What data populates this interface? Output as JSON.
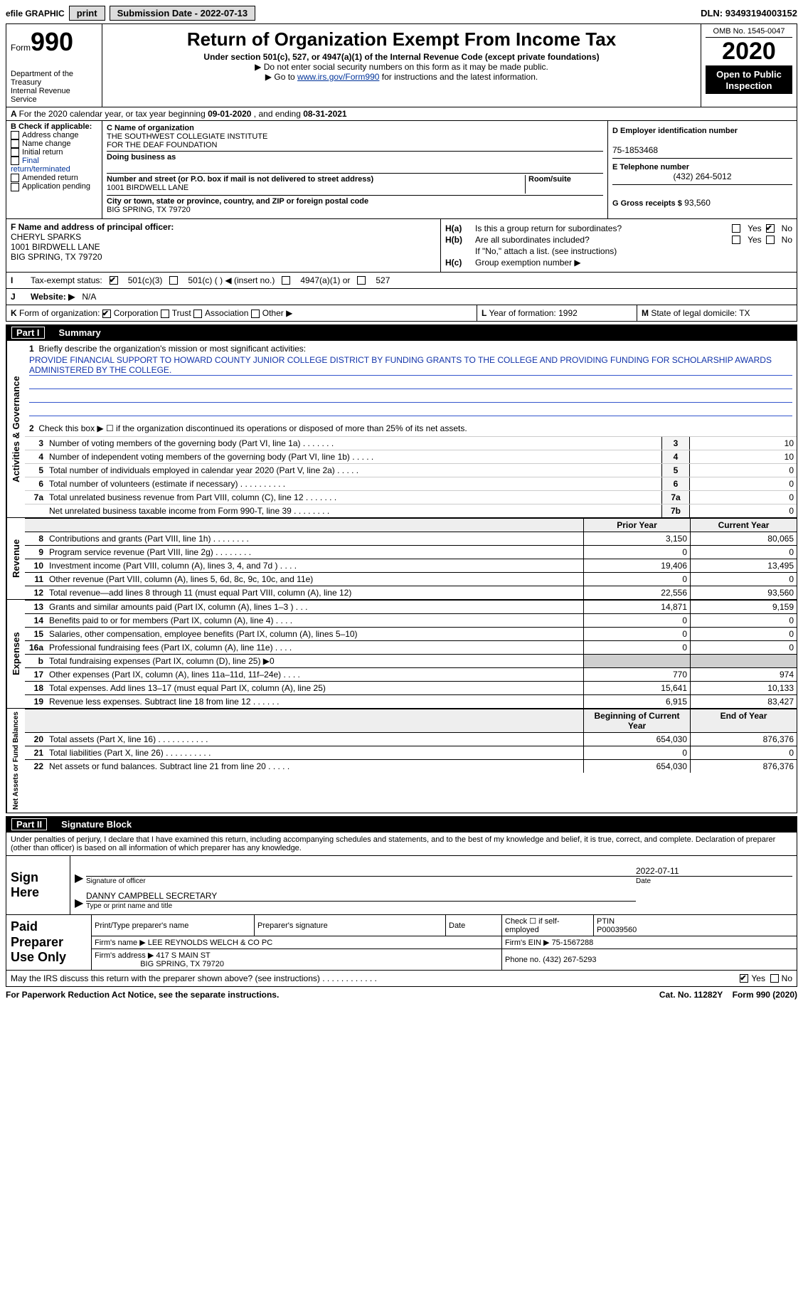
{
  "topbar": {
    "efile": "efile GRAPHIC",
    "print": "print",
    "submission_label": "Submission Date -",
    "submission_date": "2022-07-13",
    "dln_label": "DLN:",
    "dln": "93493194003152"
  },
  "header": {
    "form_label": "Form",
    "form_number": "990",
    "dept1": "Department of the Treasury",
    "dept2": "Internal Revenue Service",
    "title": "Return of Organization Exempt From Income Tax",
    "subtitle": "Under section 501(c), 527, or 4947(a)(1) of the Internal Revenue Code (except private foundations)",
    "note1_prefix": "▶ Do not enter social security numbers on this form as it may be made public.",
    "note2_prefix": "▶ Go to ",
    "note2_link": "www.irs.gov/Form990",
    "note2_suffix": " for instructions and the latest information.",
    "omb": "OMB No. 1545-0047",
    "year": "2020",
    "open_public": "Open to Public Inspection"
  },
  "rowA": {
    "prefix": "A",
    "text": "For the 2020 calendar year, or tax year beginning ",
    "begin": "09-01-2020",
    "mid": " , and ending ",
    "end": "08-31-2021"
  },
  "boxB": {
    "hdr": "B Check if applicable:",
    "items": [
      "Address change",
      "Name change",
      "Initial return",
      "Final return/terminated",
      "Amended return",
      "Application pending"
    ]
  },
  "boxC": {
    "c_lbl": "C Name of organization",
    "org1": "THE SOUTHWEST COLLEGIATE INSTITUTE",
    "org2": "FOR THE DEAF FOUNDATION",
    "dba_lbl": "Doing business as",
    "dba": "",
    "addr_lbl": "Number and street (or P.O. box if mail is not delivered to street address)",
    "room_lbl": "Room/suite",
    "street": "1001 BIRDWELL LANE",
    "city_lbl": "City or town, state or province, country, and ZIP or foreign postal code",
    "citystate": "BIG SPRING, TX  79720"
  },
  "boxD": {
    "d_lbl": "D Employer identification number",
    "ein": "75-1853468",
    "e_lbl": "E Telephone number",
    "phone": "(432) 264-5012",
    "g_lbl": "G Gross receipts $",
    "gross": "93,560"
  },
  "boxF": {
    "f_lbl": "F Name and address of principal officer:",
    "name": "CHERYL SPARKS",
    "addr1": "1001 BIRDWELL LANE",
    "addr2": "BIG SPRING, TX  79720"
  },
  "boxH": {
    "ha_lbl": "H(a)",
    "ha_text": "Is this a group return for subordinates?",
    "ha_yes": "Yes",
    "ha_no": "No",
    "hb_lbl": "H(b)",
    "hb_text": "Are all subordinates included?",
    "hb_yes": "Yes",
    "hb_no": "No",
    "hb_note": "If \"No,\" attach a list. (see instructions)",
    "hc_lbl": "H(c)",
    "hc_text": "Group exemption number ▶"
  },
  "rowI": {
    "lbl": "I",
    "text": "Tax-exempt status:",
    "opt1": "501(c)(3)",
    "opt2": "501(c) (   ) ◀ (insert no.)",
    "opt3": "4947(a)(1) or",
    "opt4": "527"
  },
  "rowJ": {
    "lbl": "J",
    "text": "Website: ▶",
    "val": "N/A"
  },
  "rowK": {
    "lbl": "K",
    "text": "Form of organization:",
    "opt1": "Corporation",
    "opt2": "Trust",
    "opt3": "Association",
    "opt4": "Other ▶"
  },
  "rowL": {
    "lbl": "L",
    "text": "Year of formation:",
    "val": "1992"
  },
  "rowM": {
    "lbl": "M",
    "text": "State of legal domicile:",
    "val": "TX"
  },
  "part1": {
    "label": "Part I",
    "title": "Summary",
    "q1_num": "1",
    "q1_text": "Briefly describe the organization's mission or most significant activities:",
    "q1_val": "PROVIDE FINANCIAL SUPPORT TO HOWARD COUNTY JUNIOR COLLEGE DISTRICT BY FUNDING GRANTS TO THE COLLEGE AND PROVIDING FUNDING FOR SCHOLARSHIP AWARDS ADMINISTERED BY THE COLLEGE.",
    "q2_num": "2",
    "q2_text": "Check this box ▶ ☐ if the organization discontinued its operations or disposed of more than 25% of its net assets.",
    "governance_label": "Activities & Governance",
    "lines_gov": [
      {
        "n": "3",
        "t": "Number of voting members of the governing body (Part VI, line 1a)   .    .    .    .    .    .    .",
        "b": "3",
        "v": "10"
      },
      {
        "n": "4",
        "t": "Number of independent voting members of the governing body (Part VI, line 1b)   .    .    .    .    .",
        "b": "4",
        "v": "10"
      },
      {
        "n": "5",
        "t": "Total number of individuals employed in calendar year 2020 (Part V, line 2a)   .    .    .    .    .",
        "b": "5",
        "v": "0"
      },
      {
        "n": "6",
        "t": "Total number of volunteers (estimate if necessary)   .    .    .    .    .    .    .    .    .    .",
        "b": "6",
        "v": "0"
      },
      {
        "n": "7a",
        "t": "Total unrelated business revenue from Part VIII, column (C), line 12   .    .    .    .    .    .    .",
        "b": "7a",
        "v": "0"
      },
      {
        "n": "",
        "t": "Net unrelated business taxable income from Form 990-T, line 39   .    .    .    .    .    .    .    .",
        "b": "7b",
        "v": "0"
      }
    ],
    "prior_year_hdr": "Prior Year",
    "current_year_hdr": "Current Year",
    "revenue_label": "Revenue",
    "lines_rev": [
      {
        "n": "8",
        "t": "Contributions and grants (Part VIII, line 1h)   .    .    .    .    .    .    .    .",
        "p": "3,150",
        "c": "80,065"
      },
      {
        "n": "9",
        "t": "Program service revenue (Part VIII, line 2g)   .    .    .    .    .    .    .    .",
        "p": "0",
        "c": "0"
      },
      {
        "n": "10",
        "t": "Investment income (Part VIII, column (A), lines 3, 4, and 7d )   .    .    .    .",
        "p": "19,406",
        "c": "13,495"
      },
      {
        "n": "11",
        "t": "Other revenue (Part VIII, column (A), lines 5, 6d, 8c, 9c, 10c, and 11e)",
        "p": "0",
        "c": "0"
      },
      {
        "n": "12",
        "t": "Total revenue—add lines 8 through 11 (must equal Part VIII, column (A), line 12)",
        "p": "22,556",
        "c": "93,560"
      }
    ],
    "expenses_label": "Expenses",
    "lines_exp": [
      {
        "n": "13",
        "t": "Grants and similar amounts paid (Part IX, column (A), lines 1–3 )   .    .    .",
        "p": "14,871",
        "c": "9,159"
      },
      {
        "n": "14",
        "t": "Benefits paid to or for members (Part IX, column (A), line 4)   .    .    .    .",
        "p": "0",
        "c": "0"
      },
      {
        "n": "15",
        "t": "Salaries, other compensation, employee benefits (Part IX, column (A), lines 5–10)",
        "p": "0",
        "c": "0"
      },
      {
        "n": "16a",
        "t": "Professional fundraising fees (Part IX, column (A), line 11e)   .    .    .    .",
        "p": "0",
        "c": "0"
      },
      {
        "n": "b",
        "t": "Total fundraising expenses (Part IX, column (D), line 25) ▶0",
        "p": "",
        "c": "",
        "grey": true
      },
      {
        "n": "17",
        "t": "Other expenses (Part IX, column (A), lines 11a–11d, 11f–24e)   .    .    .    .",
        "p": "770",
        "c": "974"
      },
      {
        "n": "18",
        "t": "Total expenses. Add lines 13–17 (must equal Part IX, column (A), line 25)",
        "p": "15,641",
        "c": "10,133"
      },
      {
        "n": "19",
        "t": "Revenue less expenses. Subtract line 18 from line 12   .    .    .    .    .    .",
        "p": "6,915",
        "c": "83,427"
      }
    ],
    "netassets_label": "Net Assets or Fund Balances",
    "beg_hdr": "Beginning of Current Year",
    "end_hdr": "End of Year",
    "lines_na": [
      {
        "n": "20",
        "t": "Total assets (Part X, line 16)   .    .    .    .    .    .    .    .    .    .    .",
        "p": "654,030",
        "c": "876,376"
      },
      {
        "n": "21",
        "t": "Total liabilities (Part X, line 26)   .    .    .    .    .    .    .    .    .    .",
        "p": "0",
        "c": "0"
      },
      {
        "n": "22",
        "t": "Net assets or fund balances. Subtract line 21 from line 20   .    .    .    .    .",
        "p": "654,030",
        "c": "876,376"
      }
    ]
  },
  "part2": {
    "label": "Part II",
    "title": "Signature Block",
    "declaration": "Under penalties of perjury, I declare that I have examined this return, including accompanying schedules and statements, and to the best of my knowledge and belief, it is true, correct, and complete. Declaration of preparer (other than officer) is based on all information of which preparer has any knowledge.",
    "sign_here": "Sign Here",
    "sig_of_officer": "Signature of officer",
    "date_lbl": "Date",
    "date_val": "2022-07-11",
    "officer_name": "DANNY CAMPBELL SECRETARY",
    "type_name_lbl": "Type or print name and title",
    "paid_lbl": "Paid Preparer Use Only",
    "prep_name_lbl": "Print/Type preparer's name",
    "prep_sig_lbl": "Preparer's signature",
    "prep_date_lbl": "Date",
    "check_self_lbl": "Check ☐ if self-employed",
    "ptin_lbl": "PTIN",
    "ptin": "P00039560",
    "firm_name_lbl": "Firm's name    ▶",
    "firm_name": "LEE REYNOLDS WELCH & CO PC",
    "firm_ein_lbl": "Firm's EIN ▶",
    "firm_ein": "75-1567288",
    "firm_addr_lbl": "Firm's address ▶",
    "firm_addr1": "417 S MAIN ST",
    "firm_addr2": "BIG SPRING, TX  79720",
    "firm_phone_lbl": "Phone no.",
    "firm_phone": "(432) 267-5293",
    "may_irs": "May the IRS discuss this return with the preparer shown above? (see instructions)   .    .    .    .    .    .    .    .    .    .    .    .",
    "yes": "Yes",
    "no": "No"
  },
  "footer": {
    "pra": "For Paperwork Reduction Act Notice, see the separate instructions.",
    "cat": "Cat. No. 11282Y",
    "formref": "Form 990 (2020)"
  },
  "colors": {
    "link": "#003399",
    "ruled": "#3355cc",
    "black": "#000000",
    "grey": "#cfcfcf"
  }
}
